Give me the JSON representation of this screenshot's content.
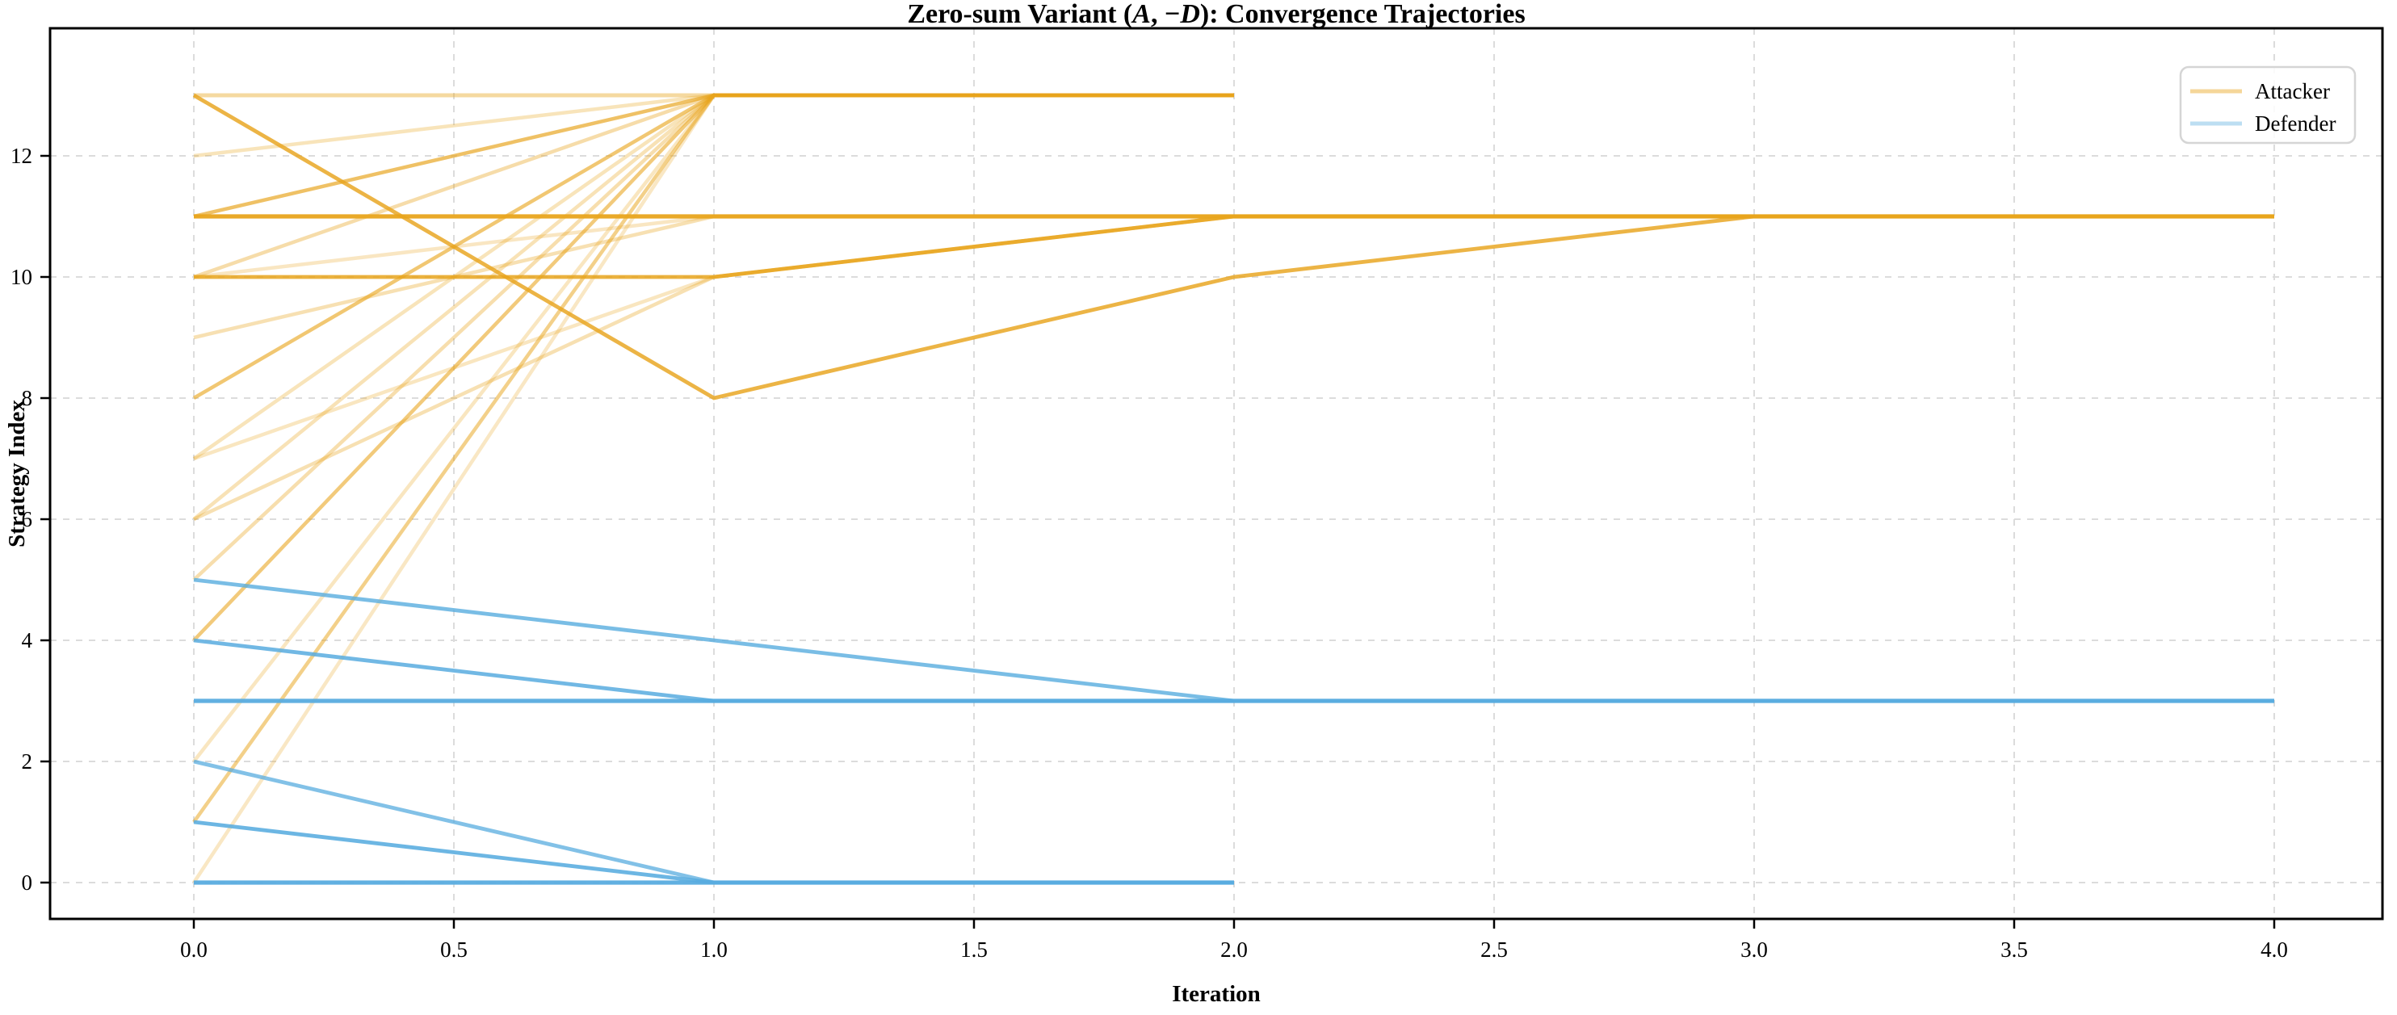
{
  "chart_data": {
    "type": "line",
    "title": "Zero-sum Variant (A, −D): Convergence Trajectories",
    "title_parts": [
      {
        "text": "Zero-sum Variant (",
        "italic": false
      },
      {
        "text": "A",
        "italic": true
      },
      {
        "text": ", −",
        "italic": false
      },
      {
        "text": "D",
        "italic": true
      },
      {
        "text": "): Convergence Trajectories",
        "italic": false
      }
    ],
    "xlabel": "Iteration",
    "ylabel": "Strategy Index",
    "xlim": [
      -0.2764,
      4.2081
    ],
    "ylim": [
      -0.6,
      14.1067
    ],
    "x_tick_values": [
      0.0,
      0.5,
      1.0,
      1.5,
      2.0,
      2.5,
      3.0,
      3.5,
      4.0
    ],
    "x_tick_labels": [
      "0.0",
      "0.5",
      "1.0",
      "1.5",
      "2.0",
      "2.5",
      "3.0",
      "3.5",
      "4.0"
    ],
    "y_tick_values": [
      0,
      2,
      4,
      6,
      8,
      10,
      12
    ],
    "y_tick_labels": [
      "0",
      "2",
      "4",
      "6",
      "8",
      "10",
      "12"
    ],
    "grid": true,
    "grid_color": "#dcdcdc",
    "legend_position": "upper right",
    "legend": [
      {
        "label": "Attacker",
        "color": "#e8a41c",
        "swatch_alpha": 0.45
      },
      {
        "label": "Defender",
        "color": "#58acdf",
        "swatch_alpha": 0.4
      }
    ],
    "series": [
      {
        "name": "Attacker",
        "color": "#e8a41c",
        "runs": [
          {
            "y": [
              13,
              13,
              13
            ],
            "alpha": 0.42,
            "lw": 5
          },
          {
            "y": [
              12,
              13,
              13
            ],
            "alpha": 0.3,
            "lw": 4.5
          },
          {
            "y": [
              10,
              13,
              13
            ],
            "alpha": 0.38,
            "lw": 4.5
          },
          {
            "y": [
              8,
              13,
              13
            ],
            "alpha": 0.62,
            "lw": 4.5
          },
          {
            "y": [
              7,
              13,
              13
            ],
            "alpha": 0.3,
            "lw": 4.5
          },
          {
            "y": [
              6,
              13,
              13
            ],
            "alpha": 0.32,
            "lw": 4.5
          },
          {
            "y": [
              5,
              13,
              13
            ],
            "alpha": 0.36,
            "lw": 4.5
          },
          {
            "y": [
              4,
              13,
              13
            ],
            "alpha": 0.58,
            "lw": 4.5
          },
          {
            "y": [
              2,
              13,
              13
            ],
            "alpha": 0.28,
            "lw": 4.5
          },
          {
            "y": [
              1,
              13,
              13
            ],
            "alpha": 0.52,
            "lw": 4.5
          },
          {
            "y": [
              0,
              13,
              13
            ],
            "alpha": 0.26,
            "lw": 4.5
          },
          {
            "y": [
              11,
              13,
              13
            ],
            "alpha": 0.68,
            "lw": 4.5
          },
          {
            "y": [
              6,
              10,
              11,
              11
            ],
            "alpha": 0.34,
            "lw": 4.5
          },
          {
            "y": [
              7,
              10,
              11,
              11
            ],
            "alpha": 0.28,
            "lw": 4.5
          },
          {
            "y": [
              9,
              11,
              11,
              11
            ],
            "alpha": 0.34,
            "lw": 4.5
          },
          {
            "y": [
              10,
              11,
              11,
              11
            ],
            "alpha": 0.27,
            "lw": 4.5
          },
          {
            "y": [
              10,
              10,
              11,
              11,
              11
            ],
            "alpha": 0.85,
            "lw": 4.8
          },
          {
            "y": [
              13,
              8,
              10,
              11,
              11
            ],
            "alpha": 0.82,
            "lw": 4.8
          },
          {
            "y": [
              11,
              11,
              11,
              11,
              11
            ],
            "alpha": 0.95,
            "lw": 5.2
          }
        ]
      },
      {
        "name": "Defender",
        "color": "#58acdf",
        "runs": [
          {
            "y": [
              5,
              4,
              3,
              3,
              3
            ],
            "alpha": 0.8,
            "lw": 4.8
          },
          {
            "y": [
              4,
              3,
              3
            ],
            "alpha": 0.85,
            "lw": 4.8
          },
          {
            "y": [
              2,
              0,
              0
            ],
            "alpha": 0.75,
            "lw": 4.8
          },
          {
            "y": [
              1,
              0,
              0
            ],
            "alpha": 0.88,
            "lw": 4.8
          },
          {
            "y": [
              0,
              0,
              0
            ],
            "alpha": 0.95,
            "lw": 5.2
          },
          {
            "y": [
              3,
              3,
              3,
              3,
              3
            ],
            "alpha": 0.95,
            "lw": 5.2
          }
        ]
      }
    ]
  }
}
